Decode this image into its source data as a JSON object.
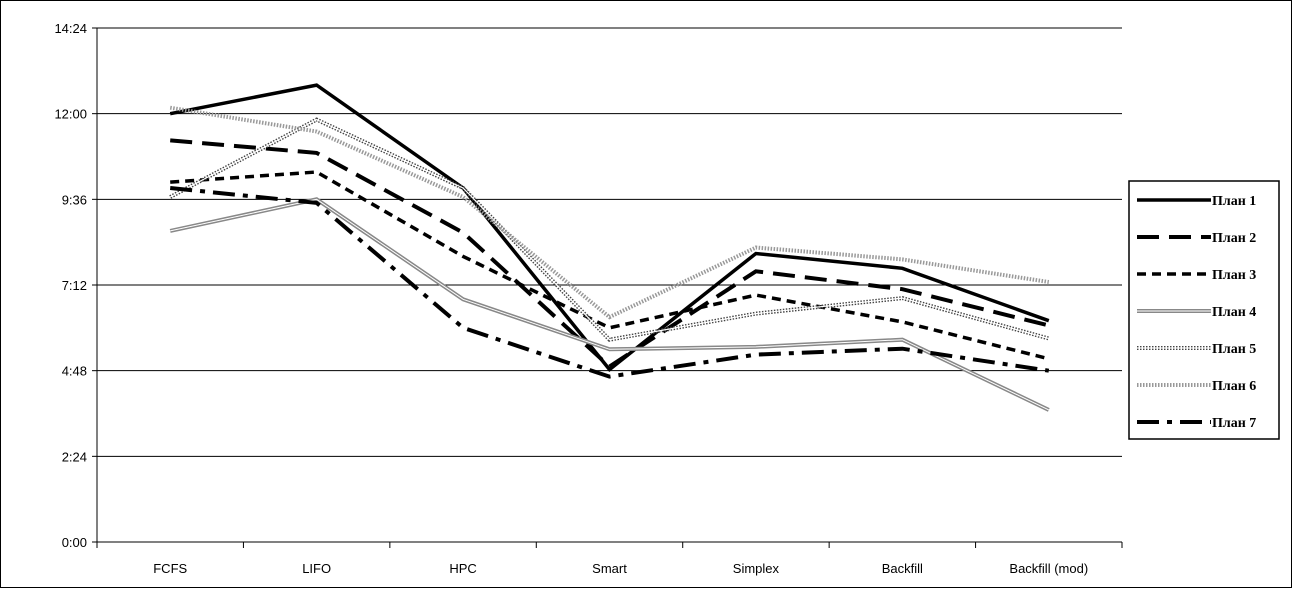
{
  "chart_data": {
    "type": "line",
    "title": "",
    "xlabel": "",
    "ylabel": "",
    "categories": [
      "FCFS",
      "LIFO",
      "HPC",
      "Smart",
      "Simplex",
      "Backfill",
      "Backfill (mod)"
    ],
    "y_ticks": [
      "0:00",
      "2:24",
      "4:48",
      "7:12",
      "9:36",
      "12:00",
      "14:24"
    ],
    "ylim_minutes": [
      0,
      864
    ],
    "grid": "horizontal",
    "legend_position": "right",
    "series": [
      {
        "name": "План 1",
        "style": "solid-thick",
        "color": "#000000",
        "values": [
          "12:00",
          "12:48",
          "9:55",
          "4:50",
          "8:05",
          "7:40",
          "6:12"
        ]
      },
      {
        "name": "План 2",
        "style": "long-dash",
        "color": "#000000",
        "values": [
          "11:15",
          "10:54",
          "8:40",
          "4:55",
          "7:35",
          "7:05",
          "6:04"
        ]
      },
      {
        "name": "План 3",
        "style": "short-dash",
        "color": "#000000",
        "values": [
          "10:05",
          "10:22",
          "8:00",
          "6:00",
          "6:55",
          "6:10",
          "5:08"
        ]
      },
      {
        "name": "План 4",
        "style": "double-gray",
        "color": "#808080",
        "values": [
          "8:43",
          "9:36",
          "6:48",
          "5:24",
          "5:28",
          "5:40",
          "3:42"
        ]
      },
      {
        "name": "План 5",
        "style": "dotted-double",
        "color": "#404040",
        "values": [
          "9:40",
          "11:50",
          "9:55",
          "5:40",
          "6:24",
          "6:50",
          "5:42"
        ]
      },
      {
        "name": "План 6",
        "style": "dotted-light",
        "color": "#808080",
        "values": [
          "12:10",
          "11:30",
          "9:40",
          "6:18",
          "8:15",
          "7:55",
          "7:17"
        ]
      },
      {
        "name": "План 7",
        "style": "dash-dot",
        "color": "#000000",
        "values": [
          "9:55",
          "9:30",
          "6:00",
          "4:38",
          "5:15",
          "5:25",
          "4:48"
        ]
      }
    ]
  }
}
